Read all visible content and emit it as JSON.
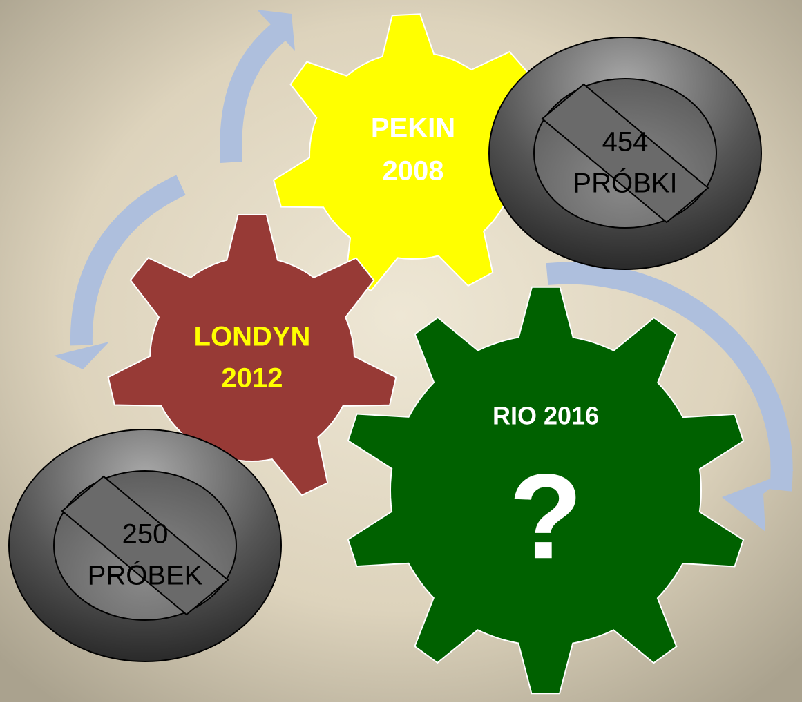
{
  "gears": [
    {
      "lines": [
        "PEKIN",
        "2008"
      ]
    },
    {
      "lines": [
        "LONDYN",
        "2012"
      ]
    },
    {
      "lines": [
        "RIO 2016"
      ],
      "mark": "?"
    }
  ],
  "signs": [
    {
      "lines": [
        "454",
        "PRÓBKI"
      ]
    },
    {
      "lines": [
        "250",
        "PRÓBEK"
      ]
    }
  ]
}
